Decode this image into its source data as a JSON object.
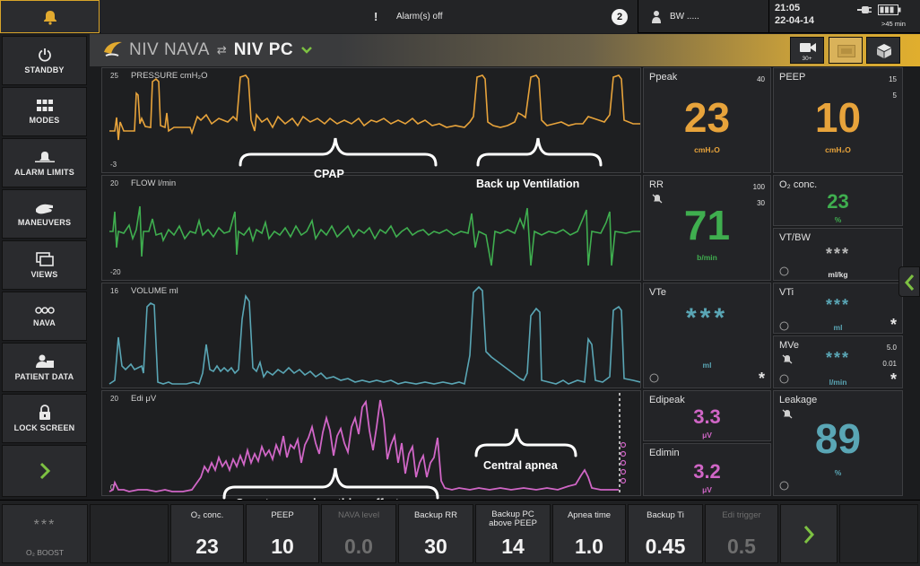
{
  "topbar": {
    "alarm_text": "Alarm(s) off",
    "exclamation": "!",
    "alarm_count": "2",
    "bw_label": "BW .....",
    "time": "21:05",
    "date": "22-04-14",
    "battery": ">45 min"
  },
  "sidebar": {
    "items": [
      {
        "label": "STANDBY",
        "icon": "power-icon"
      },
      {
        "label": "MODES",
        "icon": "grid-icon"
      },
      {
        "label": "ALARM LIMITS",
        "icon": "alarm-bell-icon"
      },
      {
        "label": "MANEUVERS",
        "icon": "hand-icon"
      },
      {
        "label": "VIEWS",
        "icon": "windows-icon"
      },
      {
        "label": "NAVA",
        "icon": "nava-icon"
      },
      {
        "label": "PATIENT DATA",
        "icon": "patient-icon"
      },
      {
        "label": "LOCK SCREEN",
        "icon": "lock-icon"
      }
    ],
    "more_icon": "chevron-right-icon"
  },
  "mode": {
    "from": "NIV NAVA",
    "arrows": "⇄",
    "to": "NIV PC",
    "record_badge": "30+"
  },
  "waveforms": {
    "pressure": {
      "label": "PRESSURE cmH₂O",
      "top": "25",
      "bottom": "-3",
      "color": "#e7a33b"
    },
    "flow": {
      "label": "FLOW l/min",
      "top": "20",
      "bottom": "-20",
      "color": "#3fae4f"
    },
    "volume": {
      "label": "VOLUME ml",
      "top": "16",
      "color": "#5aa6b5"
    },
    "edi": {
      "label": "Edi μV",
      "top": "20",
      "bottom": "0",
      "color": "#d066c6"
    }
  },
  "annotations": {
    "cpap": "CPAP",
    "backup": "Back up Ventilation",
    "central_apnea": "Central apnea",
    "spontaneous": "Spontaneous breathing effort"
  },
  "values": {
    "ppeak": {
      "label": "Ppeak",
      "limit": "40",
      "value": "23",
      "unit": "cmH₂O"
    },
    "peep": {
      "label": "PEEP",
      "limit_hi": "15",
      "limit_lo": "5",
      "value": "10",
      "unit": "cmH₂O"
    },
    "rr": {
      "label": "RR",
      "limit_hi": "100",
      "limit_lo": "30",
      "value": "71",
      "unit": "b/min"
    },
    "o2": {
      "label": "O₂ conc.",
      "value": "23",
      "unit": "%"
    },
    "vtbw": {
      "label": "VT/BW",
      "value": "***",
      "unit": "ml/kg"
    },
    "vte": {
      "label": "VTe",
      "value": "***",
      "unit": "ml",
      "star": "*"
    },
    "vti": {
      "label": "VTi",
      "value": "***",
      "unit": "ml",
      "star": "*"
    },
    "mve": {
      "label": "MVe",
      "limit_hi": "5.0",
      "limit_lo": "0.01",
      "value": "***",
      "unit": "l/min",
      "star": "*"
    },
    "edipeak": {
      "label": "Edipeak",
      "value": "3.3",
      "unit": "μV"
    },
    "edimin": {
      "label": "Edimin",
      "value": "3.2",
      "unit": "μV"
    },
    "leakage": {
      "label": "Leakage",
      "value": "89",
      "unit": "%"
    }
  },
  "bottom": {
    "o2boost": {
      "value": "***",
      "label": "O₂ BOOST"
    },
    "settings": [
      {
        "label": "O₂ conc.",
        "value": "23",
        "dim": false
      },
      {
        "label": "PEEP",
        "value": "10",
        "dim": false
      },
      {
        "label": "NAVA level",
        "value": "0.0",
        "dim": true
      },
      {
        "label": "Backup RR",
        "value": "30",
        "dim": false
      },
      {
        "label": "Backup PC above PEEP",
        "value": "14",
        "dim": false
      },
      {
        "label": "Apnea time",
        "value": "1.0",
        "dim": false
      },
      {
        "label": "Backup Ti",
        "value": "0.45",
        "dim": false
      },
      {
        "label": "Edi trigger",
        "value": "0.5",
        "dim": true
      }
    ]
  }
}
